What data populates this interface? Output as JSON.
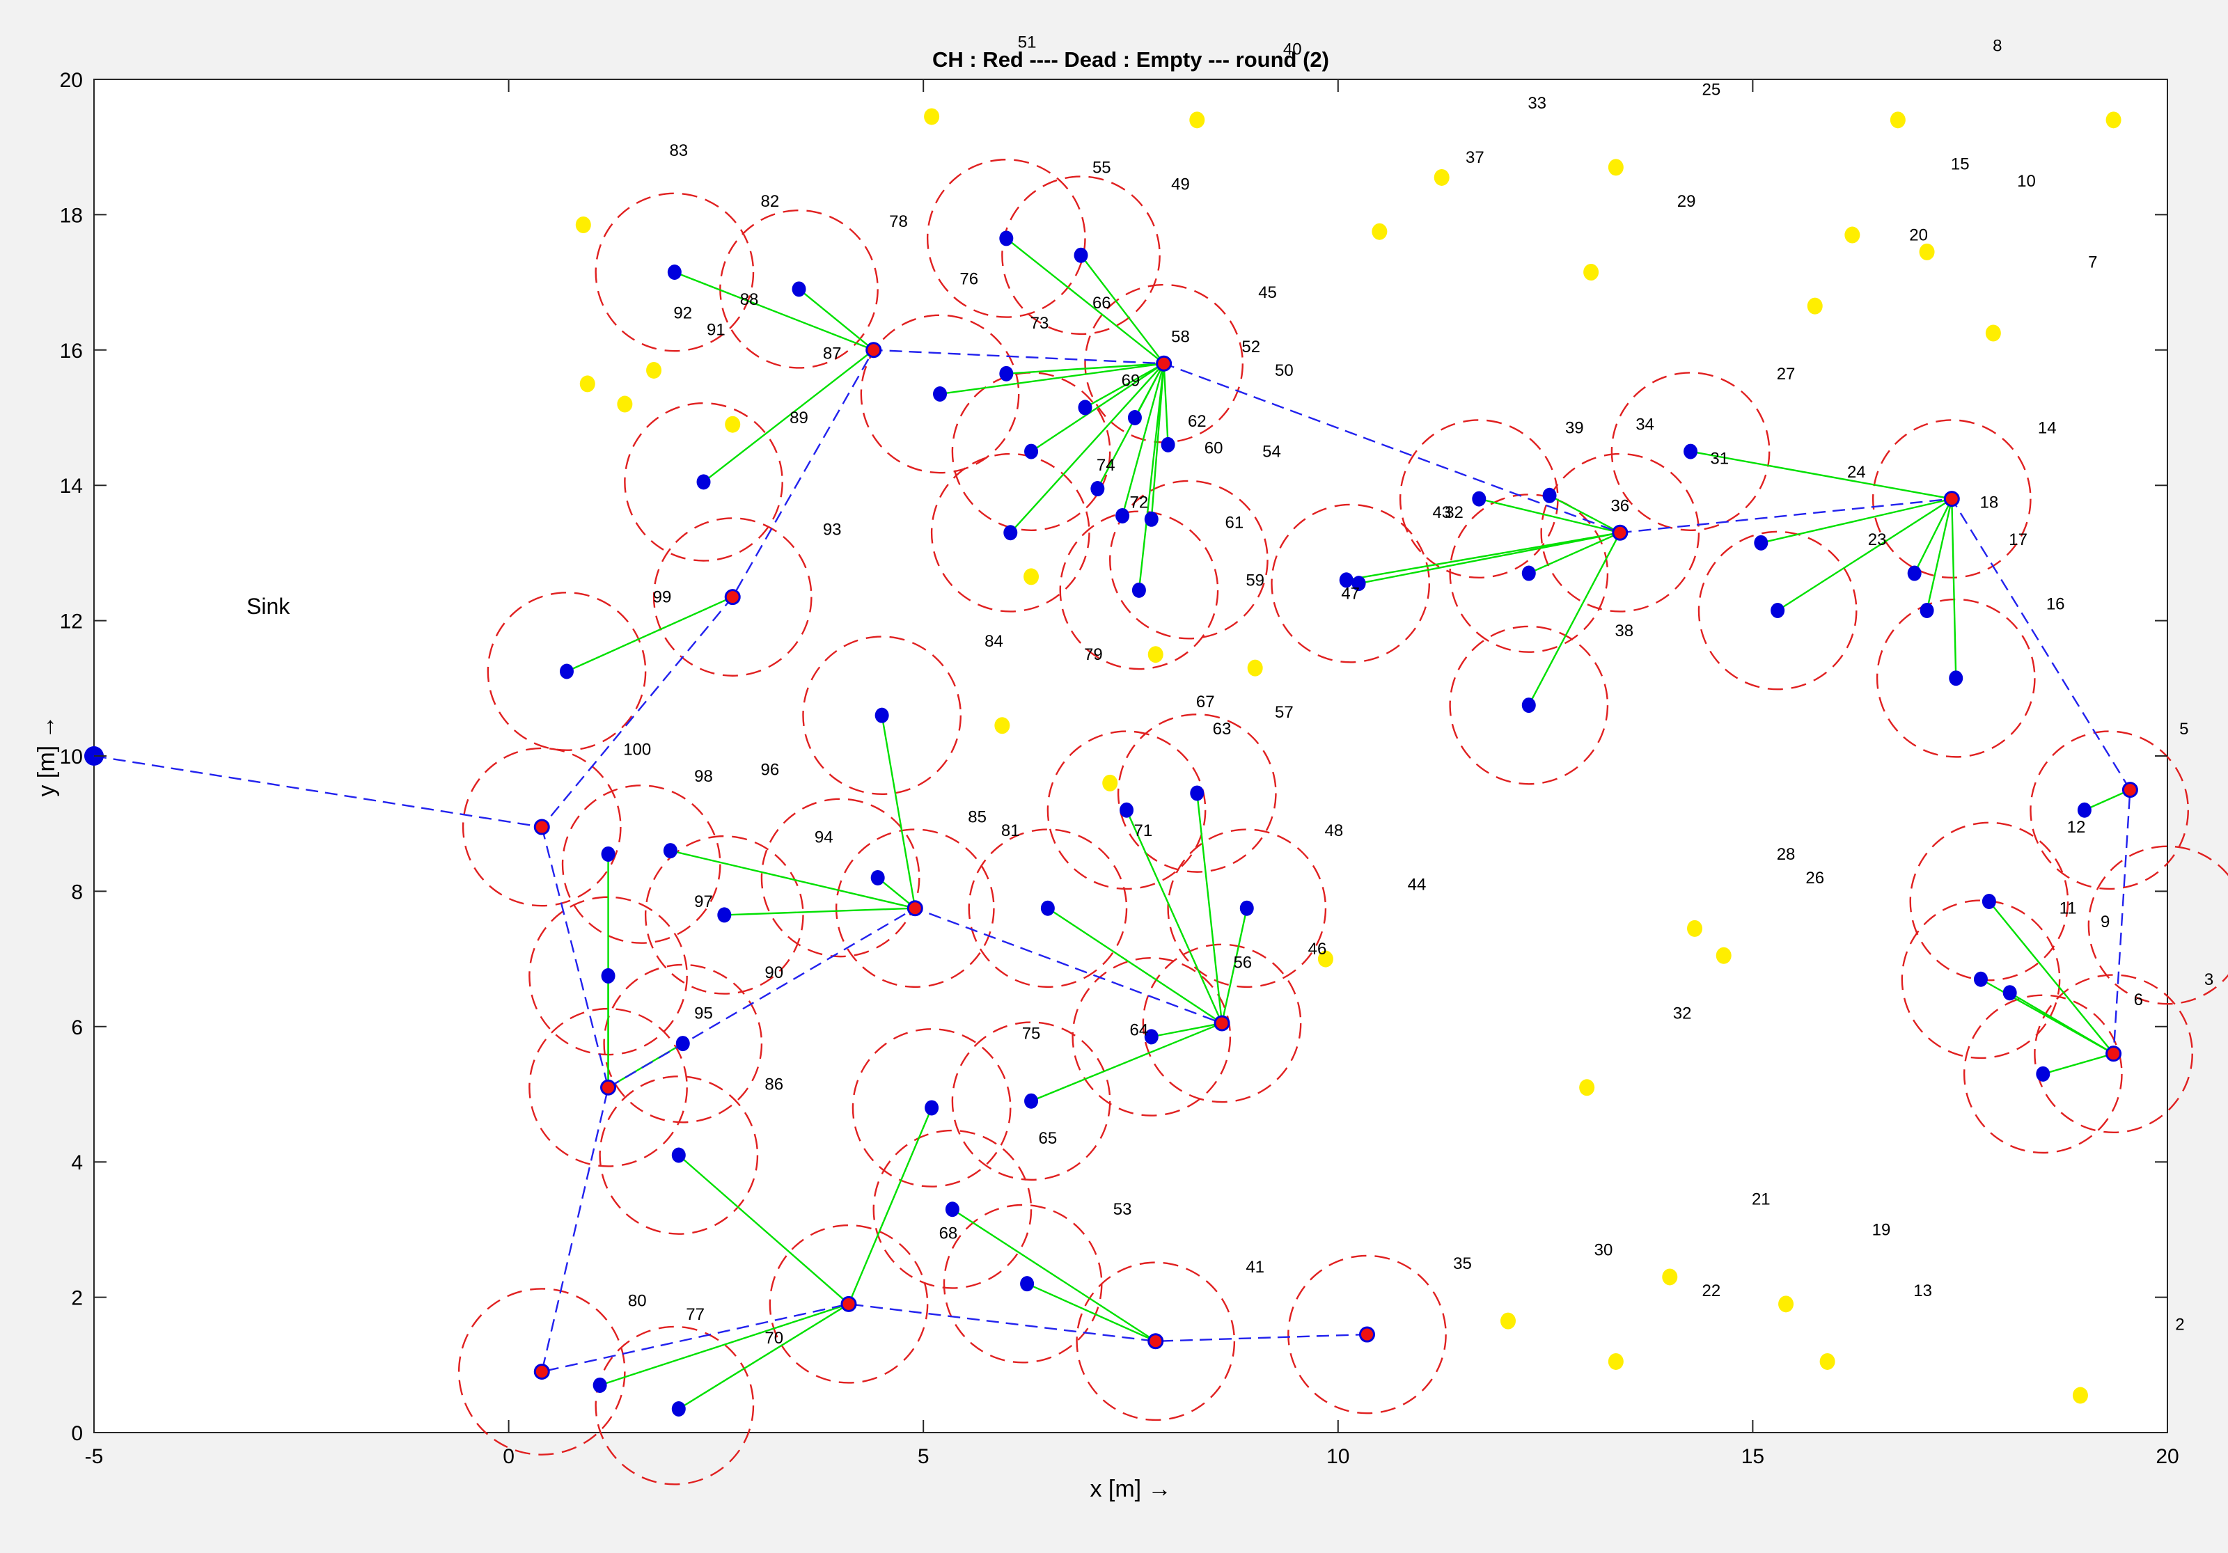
{
  "chart_data": {
    "type": "scatter",
    "title": "CH : Red  ----  Dead : Empty  ---  round (2)",
    "xlabel": "x  [m] →",
    "ylabel": "y  [m] →",
    "xlim": [
      -5,
      20
    ],
    "ylim": [
      0,
      20
    ],
    "xticks": [
      "-5",
      "0",
      "5",
      "10",
      "15",
      "20"
    ],
    "yticks": [
      "0",
      "2",
      "4",
      "6",
      "8",
      "10",
      "12",
      "14",
      "16",
      "18",
      "20"
    ],
    "grid": false,
    "colors": {
      "alive_node": "#0000dd",
      "dead_node": "#ffee00",
      "cluster_head": "#ee1111",
      "member_link": "#00e000",
      "ch_route": "#2222ee",
      "cluster_boundary": "#e02020"
    },
    "sink": {
      "label": "Sink",
      "x": -5,
      "y": 10,
      "label_x": -2.9,
      "label_y": 12.1
    },
    "cluster_heads": [
      {
        "x": 0.4,
        "y": 0.9
      },
      {
        "x": 4.1,
        "y": 1.9
      },
      {
        "x": 7.8,
        "y": 1.35
      },
      {
        "x": 10.35,
        "y": 1.45
      },
      {
        "x": 1.2,
        "y": 5.1
      },
      {
        "x": 4.9,
        "y": 7.75
      },
      {
        "x": 8.6,
        "y": 6.05
      },
      {
        "x": 0.4,
        "y": 8.95
      },
      {
        "x": 2.7,
        "y": 12.35
      },
      {
        "x": 4.4,
        "y": 16.0
      },
      {
        "x": 7.9,
        "y": 15.8
      },
      {
        "x": 13.4,
        "y": 13.3
      },
      {
        "x": 17.4,
        "y": 13.8
      },
      {
        "x": 19.55,
        "y": 9.5
      },
      {
        "x": 19.35,
        "y": 5.6
      }
    ],
    "ch_route": [
      [
        [
          -5,
          10
        ],
        [
          0.4,
          8.95
        ],
        [
          2.7,
          12.35
        ],
        [
          4.4,
          16.0
        ],
        [
          7.9,
          15.8
        ],
        [
          13.4,
          13.3
        ],
        [
          17.4,
          13.8
        ],
        [
          19.55,
          9.5
        ],
        [
          19.35,
          5.6
        ]
      ],
      [
        [
          0.4,
          8.95
        ],
        [
          1.2,
          5.1
        ],
        [
          0.4,
          0.9
        ],
        [
          4.1,
          1.9
        ],
        [
          7.8,
          1.35
        ],
        [
          10.35,
          1.45
        ]
      ],
      [
        [
          1.2,
          5.1
        ],
        [
          4.9,
          7.75
        ],
        [
          8.6,
          6.05
        ]
      ]
    ],
    "alive_members": [
      {
        "x": 2.0,
        "y": 17.15,
        "ch": 9
      },
      {
        "x": 3.5,
        "y": 16.9,
        "ch": 9
      },
      {
        "x": 2.35,
        "y": 14.05,
        "ch": 9
      },
      {
        "x": 6.0,
        "y": 17.65,
        "ch": 10
      },
      {
        "x": 6.9,
        "y": 17.4,
        "ch": 10
      },
      {
        "x": 5.2,
        "y": 15.35,
        "ch": 10
      },
      {
        "x": 6.0,
        "y": 15.65,
        "ch": 10
      },
      {
        "x": 6.95,
        "y": 15.15,
        "ch": 10
      },
      {
        "x": 7.55,
        "y": 15.0,
        "ch": 10
      },
      {
        "x": 7.95,
        "y": 14.6,
        "ch": 10
      },
      {
        "x": 6.3,
        "y": 14.5,
        "ch": 10
      },
      {
        "x": 7.1,
        "y": 13.95,
        "ch": 10
      },
      {
        "x": 6.05,
        "y": 13.3,
        "ch": 10
      },
      {
        "x": 7.4,
        "y": 13.55,
        "ch": 10
      },
      {
        "x": 7.75,
        "y": 13.5,
        "ch": 10
      },
      {
        "x": 7.6,
        "y": 12.45,
        "ch": 10
      },
      {
        "x": 0.7,
        "y": 11.25,
        "ch": 8
      },
      {
        "x": 10.1,
        "y": 12.6,
        "ch": 11
      },
      {
        "x": 10.25,
        "y": 12.55,
        "ch": 11
      },
      {
        "x": 11.7,
        "y": 13.8,
        "ch": 11
      },
      {
        "x": 12.55,
        "y": 13.85,
        "ch": 11
      },
      {
        "x": 12.3,
        "y": 12.7,
        "ch": 11
      },
      {
        "x": 12.3,
        "y": 10.75,
        "ch": 11
      },
      {
        "x": 14.25,
        "y": 14.5,
        "ch": 12
      },
      {
        "x": 15.1,
        "y": 13.15,
        "ch": 12
      },
      {
        "x": 15.3,
        "y": 12.15,
        "ch": 12
      },
      {
        "x": 16.95,
        "y": 12.7,
        "ch": 12
      },
      {
        "x": 17.1,
        "y": 12.15,
        "ch": 12
      },
      {
        "x": 17.45,
        "y": 11.15,
        "ch": 12
      },
      {
        "x": 19.0,
        "y": 9.2,
        "ch": 13
      },
      {
        "x": 17.85,
        "y": 7.85,
        "ch": 14
      },
      {
        "x": 17.75,
        "y": 6.7,
        "ch": 14
      },
      {
        "x": 18.1,
        "y": 6.5,
        "ch": 14
      },
      {
        "x": 18.5,
        "y": 5.3,
        "ch": 14
      },
      {
        "x": 4.5,
        "y": 10.6,
        "ch": 5
      },
      {
        "x": 1.95,
        "y": 8.6,
        "ch": 5
      },
      {
        "x": 4.45,
        "y": 8.2,
        "ch": 5
      },
      {
        "x": 2.6,
        "y": 7.65,
        "ch": 5
      },
      {
        "x": 1.2,
        "y": 8.55,
        "ch": 4
      },
      {
        "x": 1.2,
        "y": 6.75,
        "ch": 4
      },
      {
        "x": 2.1,
        "y": 5.75,
        "ch": 4
      },
      {
        "x": 7.45,
        "y": 9.2,
        "ch": 6
      },
      {
        "x": 8.3,
        "y": 9.45,
        "ch": 6
      },
      {
        "x": 8.9,
        "y": 7.75,
        "ch": 6
      },
      {
        "x": 6.5,
        "y": 7.75,
        "ch": 6
      },
      {
        "x": 7.75,
        "y": 5.85,
        "ch": 6
      },
      {
        "x": 6.3,
        "y": 4.9,
        "ch": 6
      },
      {
        "x": 2.05,
        "y": 4.1,
        "ch": 1
      },
      {
        "x": 5.1,
        "y": 4.8,
        "ch": 1
      },
      {
        "x": 1.1,
        "y": 0.7,
        "ch": 1
      },
      {
        "x": 2.05,
        "y": 0.35,
        "ch": 1
      },
      {
        "x": 5.35,
        "y": 3.3,
        "ch": 2
      },
      {
        "x": 6.25,
        "y": 2.2,
        "ch": 2
      }
    ],
    "dead_nodes": [
      {
        "x": 5.1,
        "y": 19.45
      },
      {
        "x": 8.3,
        "y": 19.4
      },
      {
        "x": 0.9,
        "y": 17.85
      },
      {
        "x": 11.25,
        "y": 18.55
      },
      {
        "x": 13.35,
        "y": 18.7
      },
      {
        "x": 10.5,
        "y": 17.75
      },
      {
        "x": 13.05,
        "y": 17.15
      },
      {
        "x": 16.75,
        "y": 19.4
      },
      {
        "x": 19.35,
        "y": 19.4
      },
      {
        "x": 16.2,
        "y": 17.7
      },
      {
        "x": 17.1,
        "y": 17.45
      },
      {
        "x": 15.75,
        "y": 16.65
      },
      {
        "x": 17.9,
        "y": 16.25
      },
      {
        "x": 0.95,
        "y": 15.5
      },
      {
        "x": 1.4,
        "y": 15.2
      },
      {
        "x": 1.75,
        "y": 15.7
      },
      {
        "x": 2.7,
        "y": 14.9
      },
      {
        "x": 6.3,
        "y": 12.65
      },
      {
        "x": 7.8,
        "y": 11.5
      },
      {
        "x": 9.0,
        "y": 11.3
      },
      {
        "x": 5.95,
        "y": 10.45
      },
      {
        "x": 7.25,
        "y": 9.6
      },
      {
        "x": 9.85,
        "y": 7.0
      },
      {
        "x": 14.3,
        "y": 7.45
      },
      {
        "x": 14.65,
        "y": 7.05
      },
      {
        "x": 13.0,
        "y": 5.1
      },
      {
        "x": 12.05,
        "y": 1.65
      },
      {
        "x": 13.35,
        "y": 1.05
      },
      {
        "x": 14.0,
        "y": 2.3
      },
      {
        "x": 15.4,
        "y": 1.9
      },
      {
        "x": 15.9,
        "y": 1.05
      },
      {
        "x": 18.95,
        "y": 0.55
      }
    ],
    "boundaries": [
      {
        "x": 0.4,
        "y": 0.9,
        "r": 1.0
      },
      {
        "x": 2.0,
        "y": 0.4,
        "r": 0.95
      },
      {
        "x": 4.1,
        "y": 1.9,
        "r": 0.95
      },
      {
        "x": 6.2,
        "y": 2.2,
        "r": 0.95
      },
      {
        "x": 7.8,
        "y": 1.35,
        "r": 0.95
      },
      {
        "x": 10.35,
        "y": 1.45,
        "r": 0.95
      },
      {
        "x": 2.05,
        "y": 4.1,
        "r": 0.95
      },
      {
        "x": 1.2,
        "y": 5.1,
        "r": 0.95
      },
      {
        "x": 5.35,
        "y": 3.3,
        "r": 0.95
      },
      {
        "x": 5.1,
        "y": 4.8,
        "r": 0.95
      },
      {
        "x": 6.3,
        "y": 4.9,
        "r": 0.95
      },
      {
        "x": 1.2,
        "y": 6.75,
        "r": 0.95
      },
      {
        "x": 2.1,
        "y": 5.75,
        "r": 0.95
      },
      {
        "x": 0.4,
        "y": 8.95,
        "r": 0.95
      },
      {
        "x": 1.6,
        "y": 8.4,
        "r": 0.95
      },
      {
        "x": 2.6,
        "y": 7.65,
        "r": 0.95
      },
      {
        "x": 4.0,
        "y": 8.2,
        "r": 0.95
      },
      {
        "x": 4.9,
        "y": 7.75,
        "r": 0.95
      },
      {
        "x": 4.5,
        "y": 10.6,
        "r": 0.95
      },
      {
        "x": 6.5,
        "y": 7.75,
        "r": 0.95
      },
      {
        "x": 7.75,
        "y": 5.85,
        "r": 0.95
      },
      {
        "x": 8.6,
        "y": 6.05,
        "r": 0.95
      },
      {
        "x": 8.9,
        "y": 7.75,
        "r": 0.95
      },
      {
        "x": 7.45,
        "y": 9.2,
        "r": 0.95
      },
      {
        "x": 8.3,
        "y": 9.45,
        "r": 0.95
      },
      {
        "x": 0.7,
        "y": 11.25,
        "r": 0.95
      },
      {
        "x": 2.7,
        "y": 12.35,
        "r": 0.95
      },
      {
        "x": 2.35,
        "y": 14.05,
        "r": 0.95
      },
      {
        "x": 2.0,
        "y": 17.15,
        "r": 0.95
      },
      {
        "x": 3.5,
        "y": 16.9,
        "r": 0.95
      },
      {
        "x": 6.0,
        "y": 17.65,
        "r": 0.95
      },
      {
        "x": 6.9,
        "y": 17.4,
        "r": 0.95
      },
      {
        "x": 5.2,
        "y": 15.35,
        "r": 0.95
      },
      {
        "x": 6.3,
        "y": 14.5,
        "r": 0.95
      },
      {
        "x": 6.05,
        "y": 13.3,
        "r": 0.95
      },
      {
        "x": 7.9,
        "y": 15.8,
        "r": 0.95
      },
      {
        "x": 7.6,
        "y": 12.45,
        "r": 0.95
      },
      {
        "x": 8.2,
        "y": 12.9,
        "r": 0.95
      },
      {
        "x": 10.15,
        "y": 12.55,
        "r": 0.95
      },
      {
        "x": 11.7,
        "y": 13.8,
        "r": 0.95
      },
      {
        "x": 12.3,
        "y": 12.7,
        "r": 0.95
      },
      {
        "x": 12.3,
        "y": 10.75,
        "r": 0.95
      },
      {
        "x": 13.4,
        "y": 13.3,
        "r": 0.95
      },
      {
        "x": 14.25,
        "y": 14.5,
        "r": 0.95
      },
      {
        "x": 15.3,
        "y": 12.15,
        "r": 0.95
      },
      {
        "x": 17.4,
        "y": 13.8,
        "r": 0.95
      },
      {
        "x": 17.45,
        "y": 11.15,
        "r": 0.95
      },
      {
        "x": 19.3,
        "y": 9.2,
        "r": 0.95
      },
      {
        "x": 17.85,
        "y": 7.85,
        "r": 0.95
      },
      {
        "x": 17.75,
        "y": 6.7,
        "r": 0.95
      },
      {
        "x": 18.5,
        "y": 5.3,
        "r": 0.95
      },
      {
        "x": 19.35,
        "y": 5.6,
        "r": 0.95
      },
      {
        "x": 20.0,
        "y": 7.5,
        "r": 0.95
      }
    ],
    "node_labels": [
      {
        "text": "51",
        "x": 6.25,
        "y": 20.55
      },
      {
        "text": "40",
        "x": 9.45,
        "y": 20.45
      },
      {
        "text": "8",
        "x": 17.95,
        "y": 20.5
      },
      {
        "text": "33",
        "x": 12.4,
        "y": 19.65
      },
      {
        "text": "25",
        "x": 14.5,
        "y": 19.85
      },
      {
        "text": "83",
        "x": 2.05,
        "y": 18.95
      },
      {
        "text": "55",
        "x": 7.15,
        "y": 18.7
      },
      {
        "text": "49",
        "x": 8.1,
        "y": 18.45
      },
      {
        "text": "37",
        "x": 11.65,
        "y": 18.85
      },
      {
        "text": "15",
        "x": 17.5,
        "y": 18.75
      },
      {
        "text": "10",
        "x": 18.3,
        "y": 18.5
      },
      {
        "text": "82",
        "x": 3.15,
        "y": 18.2
      },
      {
        "text": "78",
        "x": 4.7,
        "y": 17.9
      },
      {
        "text": "29",
        "x": 14.2,
        "y": 18.2
      },
      {
        "text": "20",
        "x": 17.0,
        "y": 17.7
      },
      {
        "text": "7",
        "x": 19.1,
        "y": 17.3
      },
      {
        "text": "76",
        "x": 5.55,
        "y": 17.05
      },
      {
        "text": "45",
        "x": 9.15,
        "y": 16.85
      },
      {
        "text": "88",
        "x": 2.9,
        "y": 16.75
      },
      {
        "text": "66",
        "x": 7.15,
        "y": 16.7
      },
      {
        "text": "92",
        "x": 2.1,
        "y": 16.55
      },
      {
        "text": "73",
        "x": 6.4,
        "y": 16.4
      },
      {
        "text": "91",
        "x": 2.5,
        "y": 16.3
      },
      {
        "text": "58",
        "x": 8.1,
        "y": 16.2
      },
      {
        "text": "87",
        "x": 3.9,
        "y": 15.95
      },
      {
        "text": "52",
        "x": 8.95,
        "y": 16.05
      },
      {
        "text": "50",
        "x": 9.35,
        "y": 15.7
      },
      {
        "text": "27",
        "x": 15.4,
        "y": 15.65
      },
      {
        "text": "69",
        "x": 7.5,
        "y": 15.55
      },
      {
        "text": "89",
        "x": 3.5,
        "y": 15.0
      },
      {
        "text": "62",
        "x": 8.3,
        "y": 14.95
      },
      {
        "text": "39",
        "x": 12.85,
        "y": 14.85
      },
      {
        "text": "34",
        "x": 13.7,
        "y": 14.9
      },
      {
        "text": "14",
        "x": 18.55,
        "y": 14.85
      },
      {
        "text": "60",
        "x": 8.5,
        "y": 14.55
      },
      {
        "text": "54",
        "x": 9.2,
        "y": 14.5
      },
      {
        "text": "31",
        "x": 14.6,
        "y": 14.4
      },
      {
        "text": "74",
        "x": 7.2,
        "y": 14.3
      },
      {
        "text": "24",
        "x": 16.25,
        "y": 14.2
      },
      {
        "text": "72",
        "x": 7.6,
        "y": 13.75
      },
      {
        "text": "43",
        "x": 11.25,
        "y": 13.6
      },
      {
        "text": "32",
        "x": 11.4,
        "y": 13.6
      },
      {
        "text": "36",
        "x": 13.4,
        "y": 13.7
      },
      {
        "text": "18",
        "x": 17.85,
        "y": 13.75
      },
      {
        "text": "93",
        "x": 3.9,
        "y": 13.35
      },
      {
        "text": "61",
        "x": 8.75,
        "y": 13.45
      },
      {
        "text": "23",
        "x": 16.5,
        "y": 13.2
      },
      {
        "text": "17",
        "x": 18.2,
        "y": 13.2
      },
      {
        "text": "99",
        "x": 1.85,
        "y": 12.35
      },
      {
        "text": "59",
        "x": 9.0,
        "y": 12.6
      },
      {
        "text": "47",
        "x": 10.15,
        "y": 12.4
      },
      {
        "text": "16",
        "x": 18.65,
        "y": 12.25
      },
      {
        "text": "38",
        "x": 13.45,
        "y": 11.85
      },
      {
        "text": "84",
        "x": 5.85,
        "y": 11.7
      },
      {
        "text": "79",
        "x": 7.05,
        "y": 11.5
      },
      {
        "text": "67",
        "x": 8.4,
        "y": 10.8
      },
      {
        "text": "57",
        "x": 9.35,
        "y": 10.65
      },
      {
        "text": "63",
        "x": 8.6,
        "y": 10.4
      },
      {
        "text": "5",
        "x": 20.2,
        "y": 10.4
      },
      {
        "text": "100",
        "x": 1.55,
        "y": 10.1
      },
      {
        "text": "98",
        "x": 2.35,
        "y": 9.7
      },
      {
        "text": "96",
        "x": 3.15,
        "y": 9.8
      },
      {
        "text": "12",
        "x": 18.9,
        "y": 8.95
      },
      {
        "text": "85",
        "x": 5.65,
        "y": 9.1
      },
      {
        "text": "71",
        "x": 7.65,
        "y": 8.9
      },
      {
        "text": "81",
        "x": 6.05,
        "y": 8.9
      },
      {
        "text": "48",
        "x": 9.95,
        "y": 8.9
      },
      {
        "text": "94",
        "x": 3.8,
        "y": 8.8
      },
      {
        "text": "28",
        "x": 15.4,
        "y": 8.55
      },
      {
        "text": "26",
        "x": 15.75,
        "y": 8.2
      },
      {
        "text": "44",
        "x": 10.95,
        "y": 8.1
      },
      {
        "text": "97",
        "x": 2.35,
        "y": 7.85
      },
      {
        "text": "11",
        "x": 18.8,
        "y": 7.75
      },
      {
        "text": "9",
        "x": 19.25,
        "y": 7.55
      },
      {
        "text": "46",
        "x": 9.75,
        "y": 7.15
      },
      {
        "text": "56",
        "x": 8.85,
        "y": 6.95
      },
      {
        "text": "90",
        "x": 3.2,
        "y": 6.8
      },
      {
        "text": "3",
        "x": 20.5,
        "y": 6.7
      },
      {
        "text": "6",
        "x": 19.65,
        "y": 6.4
      },
      {
        "text": "95",
        "x": 2.35,
        "y": 6.2
      },
      {
        "text": "32",
        "x": 14.15,
        "y": 6.2
      },
      {
        "text": "64",
        "x": 7.6,
        "y": 5.95
      },
      {
        "text": "75",
        "x": 6.3,
        "y": 5.9
      },
      {
        "text": "86",
        "x": 3.2,
        "y": 5.15
      },
      {
        "text": "65",
        "x": 6.5,
        "y": 4.35
      },
      {
        "text": "21",
        "x": 15.1,
        "y": 3.45
      },
      {
        "text": "53",
        "x": 7.4,
        "y": 3.3
      },
      {
        "text": "68",
        "x": 5.3,
        "y": 2.95
      },
      {
        "text": "19",
        "x": 16.55,
        "y": 3.0
      },
      {
        "text": "30",
        "x": 13.2,
        "y": 2.7
      },
      {
        "text": "35",
        "x": 11.5,
        "y": 2.5
      },
      {
        "text": "41",
        "x": 9.0,
        "y": 2.45
      },
      {
        "text": "22",
        "x": 14.5,
        "y": 2.1
      },
      {
        "text": "13",
        "x": 17.05,
        "y": 2.1
      },
      {
        "text": "80",
        "x": 1.55,
        "y": 1.95
      },
      {
        "text": "77",
        "x": 2.25,
        "y": 1.75
      },
      {
        "text": "2",
        "x": 20.15,
        "y": 1.6
      },
      {
        "text": "70",
        "x": 3.2,
        "y": 1.4
      }
    ]
  }
}
